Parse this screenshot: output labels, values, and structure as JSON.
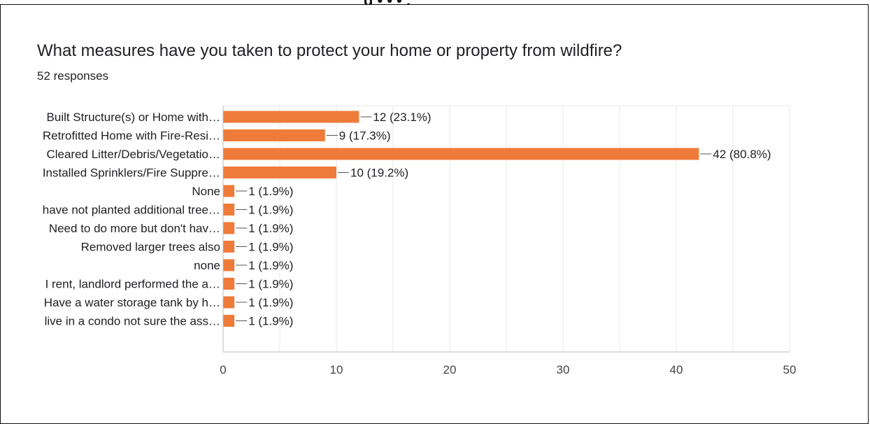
{
  "header_fragment": "g • • • ,",
  "question": "What measures have you taken to protect your home or property from wildfire?",
  "responses": "52 responses",
  "colors": {
    "bar": "#ef7b3a",
    "grid": "#e8e8e8",
    "axis": "#bdbdbd",
    "leader": "#555555"
  },
  "chart_data": {
    "type": "bar",
    "orientation": "horizontal",
    "categories": [
      "Built Structure(s) or Home with…",
      "Retrofitted Home with Fire-Resi…",
      "Cleared Litter/Debris/Vegetatio…",
      "Installed Sprinklers/Fire Suppre…",
      "None",
      "have not planted additional tree…",
      "Need to do more but don't hav…",
      "Removed larger trees also",
      "none",
      "I rent, landlord performed the a…",
      "Have a water storage tank by h…",
      "live in a condo not sure the ass…"
    ],
    "values": [
      12,
      9,
      42,
      10,
      1,
      1,
      1,
      1,
      1,
      1,
      1,
      1
    ],
    "data_labels": [
      "12 (23.1%)",
      "9 (17.3%)",
      "42 (80.8%)",
      "10 (19.2%)",
      "1 (1.9%)",
      "1 (1.9%)",
      "1 (1.9%)",
      "1 (1.9%)",
      "1 (1.9%)",
      "1 (1.9%)",
      "1 (1.9%)",
      "1 (1.9%)"
    ],
    "xlim": [
      0,
      50
    ],
    "xticks": [
      0,
      10,
      20,
      30,
      40,
      50
    ],
    "grid": true
  }
}
